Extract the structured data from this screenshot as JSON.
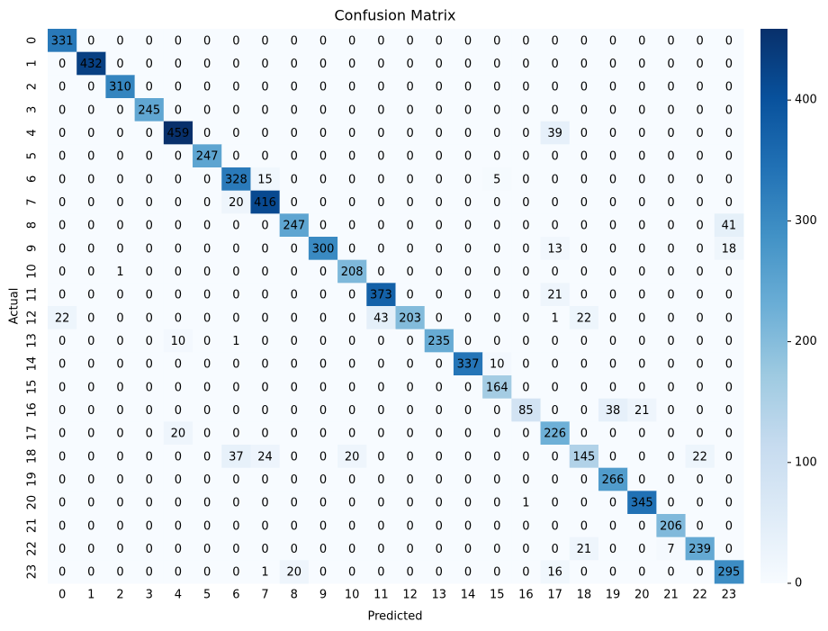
{
  "chart_data": {
    "type": "heatmap",
    "title": "Confusion Matrix",
    "xlabel": "Predicted",
    "ylabel": "Actual",
    "x_categories": [
      "0",
      "1",
      "2",
      "3",
      "4",
      "5",
      "6",
      "7",
      "8",
      "9",
      "10",
      "11",
      "12",
      "13",
      "14",
      "15",
      "16",
      "17",
      "18",
      "19",
      "20",
      "21",
      "22",
      "23"
    ],
    "y_categories": [
      "0",
      "1",
      "2",
      "3",
      "4",
      "5",
      "6",
      "7",
      "8",
      "9",
      "10",
      "11",
      "12",
      "13",
      "14",
      "15",
      "16",
      "17",
      "18",
      "19",
      "20",
      "21",
      "22",
      "23"
    ],
    "values": [
      [
        331,
        0,
        0,
        0,
        0,
        0,
        0,
        0,
        0,
        0,
        0,
        0,
        0,
        0,
        0,
        0,
        0,
        0,
        0,
        0,
        0,
        0,
        0,
        0
      ],
      [
        0,
        432,
        0,
        0,
        0,
        0,
        0,
        0,
        0,
        0,
        0,
        0,
        0,
        0,
        0,
        0,
        0,
        0,
        0,
        0,
        0,
        0,
        0,
        0
      ],
      [
        0,
        0,
        310,
        0,
        0,
        0,
        0,
        0,
        0,
        0,
        0,
        0,
        0,
        0,
        0,
        0,
        0,
        0,
        0,
        0,
        0,
        0,
        0,
        0
      ],
      [
        0,
        0,
        0,
        245,
        0,
        0,
        0,
        0,
        0,
        0,
        0,
        0,
        0,
        0,
        0,
        0,
        0,
        0,
        0,
        0,
        0,
        0,
        0,
        0
      ],
      [
        0,
        0,
        0,
        0,
        459,
        0,
        0,
        0,
        0,
        0,
        0,
        0,
        0,
        0,
        0,
        0,
        0,
        39,
        0,
        0,
        0,
        0,
        0,
        0
      ],
      [
        0,
        0,
        0,
        0,
        0,
        247,
        0,
        0,
        0,
        0,
        0,
        0,
        0,
        0,
        0,
        0,
        0,
        0,
        0,
        0,
        0,
        0,
        0,
        0
      ],
      [
        0,
        0,
        0,
        0,
        0,
        0,
        328,
        15,
        0,
        0,
        0,
        0,
        0,
        0,
        0,
        5,
        0,
        0,
        0,
        0,
        0,
        0,
        0,
        0
      ],
      [
        0,
        0,
        0,
        0,
        0,
        0,
        20,
        416,
        0,
        0,
        0,
        0,
        0,
        0,
        0,
        0,
        0,
        0,
        0,
        0,
        0,
        0,
        0,
        0
      ],
      [
        0,
        0,
        0,
        0,
        0,
        0,
        0,
        0,
        247,
        0,
        0,
        0,
        0,
        0,
        0,
        0,
        0,
        0,
        0,
        0,
        0,
        0,
        0,
        41
      ],
      [
        0,
        0,
        0,
        0,
        0,
        0,
        0,
        0,
        0,
        300,
        0,
        0,
        0,
        0,
        0,
        0,
        0,
        13,
        0,
        0,
        0,
        0,
        0,
        18
      ],
      [
        0,
        0,
        1,
        0,
        0,
        0,
        0,
        0,
        0,
        0,
        208,
        0,
        0,
        0,
        0,
        0,
        0,
        0,
        0,
        0,
        0,
        0,
        0,
        0
      ],
      [
        0,
        0,
        0,
        0,
        0,
        0,
        0,
        0,
        0,
        0,
        0,
        373,
        0,
        0,
        0,
        0,
        0,
        21,
        0,
        0,
        0,
        0,
        0,
        0
      ],
      [
        22,
        0,
        0,
        0,
        0,
        0,
        0,
        0,
        0,
        0,
        0,
        43,
        203,
        0,
        0,
        0,
        0,
        1,
        22,
        0,
        0,
        0,
        0,
        0
      ],
      [
        0,
        0,
        0,
        0,
        10,
        0,
        1,
        0,
        0,
        0,
        0,
        0,
        0,
        235,
        0,
        0,
        0,
        0,
        0,
        0,
        0,
        0,
        0,
        0
      ],
      [
        0,
        0,
        0,
        0,
        0,
        0,
        0,
        0,
        0,
        0,
        0,
        0,
        0,
        0,
        337,
        10,
        0,
        0,
        0,
        0,
        0,
        0,
        0,
        0
      ],
      [
        0,
        0,
        0,
        0,
        0,
        0,
        0,
        0,
        0,
        0,
        0,
        0,
        0,
        0,
        0,
        164,
        0,
        0,
        0,
        0,
        0,
        0,
        0,
        0
      ],
      [
        0,
        0,
        0,
        0,
        0,
        0,
        0,
        0,
        0,
        0,
        0,
        0,
        0,
        0,
        0,
        0,
        85,
        0,
        0,
        38,
        21,
        0,
        0,
        0
      ],
      [
        0,
        0,
        0,
        0,
        20,
        0,
        0,
        0,
        0,
        0,
        0,
        0,
        0,
        0,
        0,
        0,
        0,
        226,
        0,
        0,
        0,
        0,
        0,
        0
      ],
      [
        0,
        0,
        0,
        0,
        0,
        0,
        37,
        24,
        0,
        0,
        20,
        0,
        0,
        0,
        0,
        0,
        0,
        0,
        145,
        0,
        0,
        0,
        22,
        0
      ],
      [
        0,
        0,
        0,
        0,
        0,
        0,
        0,
        0,
        0,
        0,
        0,
        0,
        0,
        0,
        0,
        0,
        0,
        0,
        0,
        266,
        0,
        0,
        0,
        0
      ],
      [
        0,
        0,
        0,
        0,
        0,
        0,
        0,
        0,
        0,
        0,
        0,
        0,
        0,
        0,
        0,
        0,
        1,
        0,
        0,
        0,
        345,
        0,
        0,
        0
      ],
      [
        0,
        0,
        0,
        0,
        0,
        0,
        0,
        0,
        0,
        0,
        0,
        0,
        0,
        0,
        0,
        0,
        0,
        0,
        0,
        0,
        0,
        206,
        0,
        0
      ],
      [
        0,
        0,
        0,
        0,
        0,
        0,
        0,
        0,
        0,
        0,
        0,
        0,
        0,
        0,
        0,
        0,
        0,
        0,
        21,
        0,
        0,
        7,
        239,
        0
      ],
      [
        0,
        0,
        0,
        0,
        0,
        0,
        0,
        1,
        20,
        0,
        0,
        0,
        0,
        0,
        0,
        0,
        0,
        16,
        0,
        0,
        0,
        0,
        0,
        295
      ]
    ],
    "colormap": "Blues",
    "clim": [
      0,
      459
    ],
    "cticks": [
      0,
      100,
      200,
      300,
      400
    ]
  }
}
